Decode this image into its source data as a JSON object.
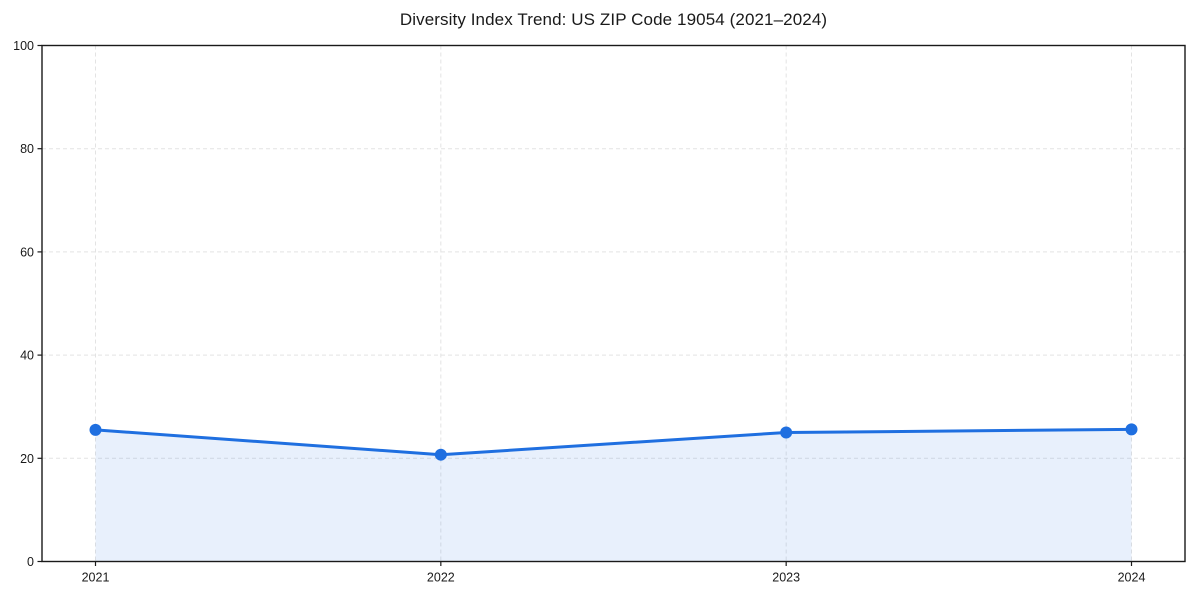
{
  "chart_data": {
    "type": "line",
    "title": "Diversity Index Trend: US ZIP Code 19054 (2021–2024)",
    "categories": [
      "2021",
      "2022",
      "2023",
      "2024"
    ],
    "series": [
      {
        "name": "Diversity Index",
        "values": [
          25.5,
          20.7,
          25.0,
          25.6
        ]
      }
    ],
    "xlabel": "",
    "ylabel": "",
    "ylim": [
      0,
      100
    ],
    "y_ticks": [
      0,
      20,
      40,
      60,
      80,
      100
    ],
    "grid": true,
    "grid_style": "dashed",
    "legend_position": "none",
    "area_fill": true,
    "markers": true,
    "colors": {
      "line": "#1f6fe0",
      "fill": "#1f6fe0",
      "fill_opacity": 0.1,
      "grid": "#e3e3e3",
      "axis": "#1a1a1a",
      "background": "#ffffff"
    }
  }
}
